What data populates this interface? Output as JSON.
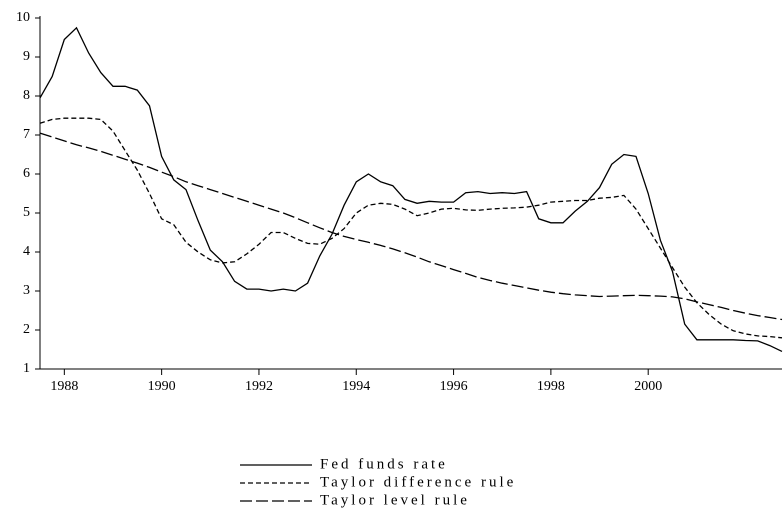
{
  "chart_data": {
    "type": "line",
    "x": [
      1987.5,
      1987.75,
      1988,
      1988.25,
      1988.5,
      1988.75,
      1989,
      1989.25,
      1989.5,
      1989.75,
      1990,
      1990.25,
      1990.5,
      1990.75,
      1991,
      1991.25,
      1991.5,
      1991.75,
      1992,
      1992.25,
      1992.5,
      1992.75,
      1993,
      1993.25,
      1993.5,
      1993.75,
      1994,
      1994.25,
      1994.5,
      1994.75,
      1995,
      1995.25,
      1995.5,
      1995.75,
      1996,
      1996.25,
      1996.5,
      1996.75,
      1997,
      1997.25,
      1997.5,
      1997.75,
      1998,
      1998.25,
      1998.5,
      1998.75,
      1999,
      1999.25,
      1999.5,
      1999.75,
      2000,
      2000.25,
      2000.5,
      2000.75,
      2001,
      2001.25,
      2001.5,
      2001.75,
      2002,
      2002.25,
      2002.5,
      2002.75
    ],
    "series": [
      {
        "name": "Fed funds rate",
        "color": "#000000",
        "dash": "solid",
        "values": [
          7.95,
          8.5,
          9.45,
          9.75,
          9.1,
          8.6,
          8.25,
          8.25,
          8.15,
          7.75,
          6.45,
          5.85,
          5.6,
          4.8,
          4.05,
          3.75,
          3.25,
          3.05,
          3.05,
          3.0,
          3.05,
          3.0,
          3.2,
          3.9,
          4.45,
          5.2,
          5.8,
          6.0,
          5.8,
          5.7,
          5.35,
          5.25,
          5.3,
          5.28,
          5.28,
          5.52,
          5.55,
          5.5,
          5.52,
          5.5,
          5.55,
          4.85,
          4.75,
          4.75,
          5.05,
          5.3,
          5.65,
          6.25,
          6.5,
          6.45,
          5.5,
          4.3,
          3.5,
          2.15,
          1.75,
          1.75,
          1.75,
          1.75,
          1.73,
          1.72,
          1.6,
          1.45
        ]
      },
      {
        "name": "Taylor difference rule",
        "color": "#000000",
        "dash": "short",
        "values": [
          7.3,
          7.4,
          7.43,
          7.43,
          7.43,
          7.4,
          7.1,
          6.6,
          6.1,
          5.5,
          4.85,
          4.7,
          4.25,
          4.0,
          3.8,
          3.72,
          3.75,
          3.95,
          4.2,
          4.5,
          4.5,
          4.35,
          4.22,
          4.2,
          4.35,
          4.6,
          5.0,
          5.2,
          5.25,
          5.22,
          5.1,
          4.93,
          5.0,
          5.1,
          5.12,
          5.08,
          5.07,
          5.1,
          5.12,
          5.13,
          5.15,
          5.2,
          5.28,
          5.3,
          5.32,
          5.32,
          5.38,
          5.4,
          5.45,
          5.1,
          4.6,
          4.1,
          3.6,
          3.1,
          2.7,
          2.4,
          2.15,
          1.98,
          1.9,
          1.85,
          1.83,
          1.8
        ]
      },
      {
        "name": "Taylor level rule",
        "color": "#000000",
        "dash": "long",
        "values": [
          7.05,
          6.95,
          6.85,
          6.75,
          6.67,
          6.58,
          6.48,
          6.38,
          6.28,
          6.17,
          6.05,
          5.93,
          5.8,
          5.7,
          5.6,
          5.5,
          5.4,
          5.3,
          5.2,
          5.1,
          5.0,
          4.88,
          4.75,
          4.62,
          4.5,
          4.4,
          4.32,
          4.25,
          4.17,
          4.08,
          3.98,
          3.87,
          3.75,
          3.65,
          3.55,
          3.45,
          3.35,
          3.27,
          3.2,
          3.14,
          3.08,
          3.02,
          2.97,
          2.93,
          2.9,
          2.88,
          2.86,
          2.87,
          2.88,
          2.89,
          2.88,
          2.87,
          2.85,
          2.8,
          2.72,
          2.65,
          2.58,
          2.5,
          2.43,
          2.37,
          2.32,
          2.27
        ]
      }
    ],
    "xlim": [
      1987.5,
      2002.75
    ],
    "xticks": [
      1988,
      1990,
      1992,
      1994,
      1996,
      1998,
      2000
    ],
    "ylim": [
      1,
      10
    ],
    "yticks": [
      1,
      2,
      3,
      4,
      5,
      6,
      7,
      8,
      9,
      10
    ]
  }
}
